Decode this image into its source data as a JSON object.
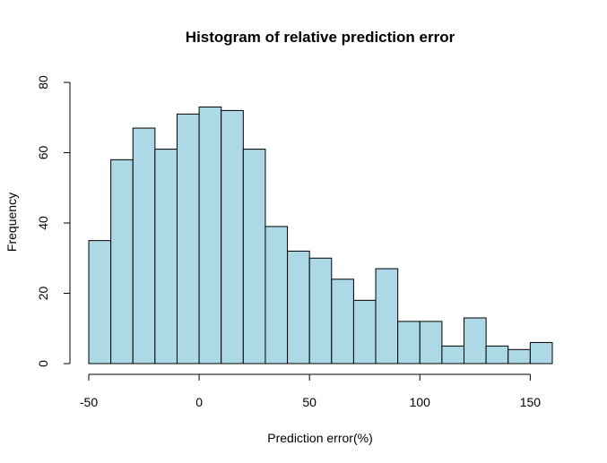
{
  "chart_data": {
    "type": "bar",
    "title": "Histogram of relative prediction error",
    "xlabel": "Prediction error(%)",
    "ylabel": "Frequency",
    "bin_edges": [
      -50,
      -40,
      -30,
      -20,
      -10,
      0,
      10,
      20,
      30,
      40,
      50,
      60,
      70,
      80,
      90,
      100,
      110,
      120,
      130,
      140,
      150,
      160
    ],
    "values": [
      35,
      58,
      67,
      61,
      71,
      73,
      72,
      61,
      39,
      32,
      30,
      24,
      18,
      27,
      12,
      12,
      5,
      13,
      5,
      4,
      6
    ],
    "xlim": [
      -50,
      160
    ],
    "ylim": [
      0,
      80
    ],
    "xticks": [
      -50,
      0,
      50,
      100,
      150
    ],
    "yticks": [
      0,
      20,
      40,
      60,
      80
    ],
    "bar_color": "#ADD8E6",
    "grid": false,
    "legend": "none"
  }
}
